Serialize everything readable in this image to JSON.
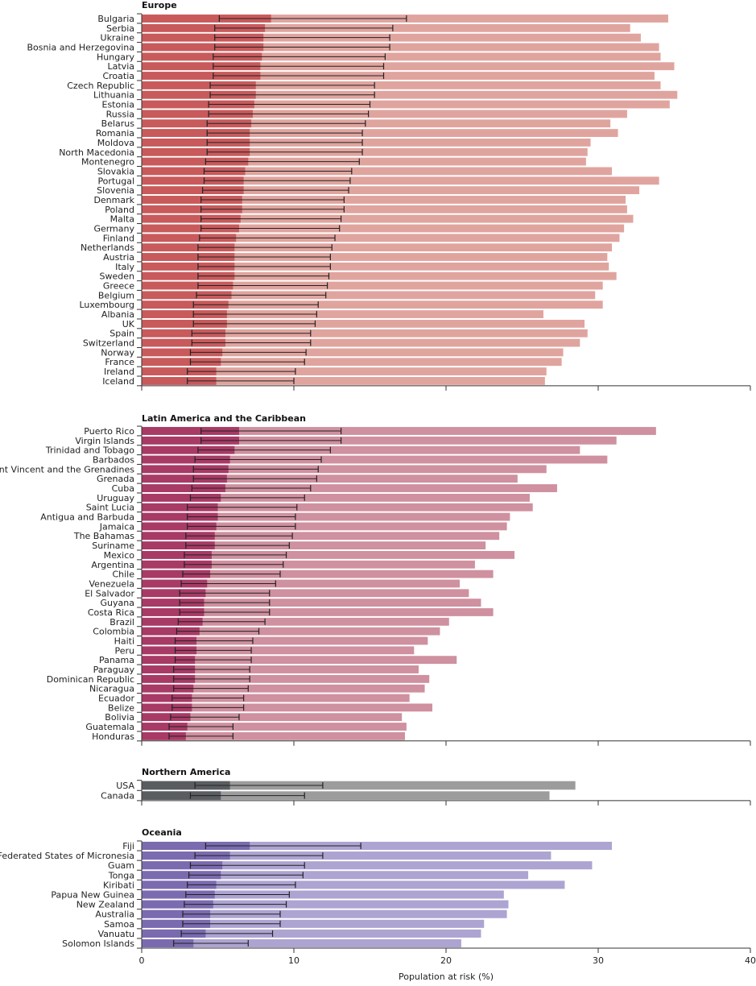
{
  "x_axis": {
    "label": "Population at risk (%)",
    "range": [
      0,
      40
    ],
    "ticks": [
      "0",
      "10",
      "20",
      "30",
      "40"
    ]
  },
  "chart_data": [
    {
      "type": "bar",
      "title": "Europe",
      "colors": {
        "dark": "#c85a5c",
        "light": "#e0a49e"
      },
      "xlim": [
        0,
        40
      ],
      "categories": [
        "Bulgaria",
        "Serbia",
        "Ukraine",
        "Bosnia and Herzegovina",
        "Hungary",
        "Latvia",
        "Croatia",
        "Czech Republic",
        "Lithuania",
        "Estonia",
        "Russia",
        "Belarus",
        "Romania",
        "Moldova",
        "North Macedonia",
        "Montenegro",
        "Slovakia",
        "Portugal",
        "Slovenia",
        "Denmark",
        "Poland",
        "Malta",
        "Germany",
        "Finland",
        "Netherlands",
        "Austria",
        "Italy",
        "Sweden",
        "Greece",
        "Belgium",
        "Luxembourg",
        "Albania",
        "UK",
        "Spain",
        "Switzerland",
        "Norway",
        "France",
        "Ireland",
        "Iceland"
      ],
      "values": [
        8.5,
        8.1,
        8.0,
        8.0,
        7.9,
        7.8,
        7.8,
        7.5,
        7.5,
        7.4,
        7.3,
        7.2,
        7.1,
        7.1,
        7.1,
        7.0,
        6.8,
        6.7,
        6.7,
        6.6,
        6.6,
        6.5,
        6.4,
        6.2,
        6.1,
        6.1,
        6.1,
        6.1,
        6.0,
        5.9,
        5.7,
        5.6,
        5.6,
        5.5,
        5.5,
        5.3,
        5.2,
        4.9,
        4.9
      ],
      "ci_lower": [
        5.1,
        4.8,
        4.8,
        4.8,
        4.7,
        4.7,
        4.7,
        4.5,
        4.5,
        4.4,
        4.4,
        4.3,
        4.3,
        4.3,
        4.3,
        4.2,
        4.1,
        4.1,
        4.0,
        3.9,
        3.9,
        3.9,
        3.9,
        3.8,
        3.7,
        3.7,
        3.7,
        3.7,
        3.7,
        3.6,
        3.4,
        3.4,
        3.4,
        3.3,
        3.3,
        3.2,
        3.2,
        3.0,
        3.0
      ],
      "ci_upper": [
        17.4,
        16.5,
        16.3,
        16.3,
        16.0,
        15.9,
        15.9,
        15.3,
        15.3,
        15.0,
        14.9,
        14.7,
        14.5,
        14.5,
        14.5,
        14.3,
        13.8,
        13.7,
        13.6,
        13.3,
        13.3,
        13.1,
        13.0,
        12.7,
        12.5,
        12.4,
        12.4,
        12.3,
        12.2,
        12.1,
        11.6,
        11.5,
        11.4,
        11.1,
        11.1,
        10.8,
        10.7,
        10.1,
        10.0
      ],
      "values_light": [
        34.6,
        32.1,
        32.8,
        34.0,
        34.1,
        35.0,
        33.7,
        34.1,
        35.2,
        34.7,
        31.9,
        30.8,
        31.3,
        29.5,
        29.3,
        29.2,
        30.9,
        34.0,
        32.7,
        31.8,
        31.9,
        32.3,
        31.7,
        31.4,
        30.9,
        30.6,
        30.7,
        31.2,
        30.3,
        29.8,
        30.3,
        26.4,
        29.1,
        29.3,
        28.8,
        27.7,
        27.6,
        26.6,
        26.5
      ]
    },
    {
      "type": "bar",
      "title": "Latin America and the Caribbean",
      "colors": {
        "dark": "#a83a66",
        "light": "#cf909f"
      },
      "xlim": [
        0,
        40
      ],
      "categories": [
        "Puerto Rico",
        "Virgin Islands",
        "Trinidad and Tobago",
        "Barbados",
        "Saint Vincent and the Grenadines",
        "Grenada",
        "Cuba",
        "Uruguay",
        "Saint Lucia",
        "Antigua and Barbuda",
        "Jamaica",
        "The Bahamas",
        "Suriname",
        "Mexico",
        "Argentina",
        "Chile",
        "Venezuela",
        "El Salvador",
        "Guyana",
        "Costa Rica",
        "Brazil",
        "Colombia",
        "Haiti",
        "Peru",
        "Panama",
        "Paraguay",
        "Dominican Republic",
        "Nicaragua",
        "Ecuador",
        "Belize",
        "Bolivia",
        "Guatemala",
        "Honduras"
      ],
      "values": [
        6.4,
        6.4,
        6.1,
        5.8,
        5.7,
        5.6,
        5.5,
        5.2,
        5.0,
        5.0,
        4.9,
        4.8,
        4.8,
        4.6,
        4.6,
        4.5,
        4.3,
        4.2,
        4.1,
        4.1,
        4.0,
        3.8,
        3.6,
        3.6,
        3.5,
        3.5,
        3.5,
        3.4,
        3.3,
        3.3,
        3.2,
        3.0,
        2.9
      ],
      "ci_lower": [
        3.9,
        3.9,
        3.7,
        3.5,
        3.4,
        3.4,
        3.3,
        3.2,
        3.0,
        3.0,
        3.0,
        2.9,
        2.9,
        2.8,
        2.8,
        2.7,
        2.6,
        2.5,
        2.5,
        2.5,
        2.4,
        2.3,
        2.2,
        2.2,
        2.2,
        2.1,
        2.1,
        2.1,
        2.0,
        2.0,
        1.9,
        1.8,
        1.8
      ],
      "ci_upper": [
        13.1,
        13.1,
        12.4,
        11.8,
        11.6,
        11.5,
        11.1,
        10.7,
        10.2,
        10.1,
        10.1,
        9.9,
        9.7,
        9.5,
        9.3,
        9.1,
        8.8,
        8.4,
        8.4,
        8.4,
        8.1,
        7.7,
        7.3,
        7.2,
        7.2,
        7.1,
        7.1,
        7.0,
        6.7,
        6.7,
        6.4,
        6.0,
        6.0
      ],
      "values_light": [
        33.8,
        31.2,
        28.8,
        30.6,
        26.6,
        24.7,
        27.3,
        25.5,
        25.7,
        24.2,
        24.0,
        23.5,
        22.6,
        24.5,
        21.9,
        23.1,
        20.9,
        21.5,
        22.3,
        23.1,
        20.2,
        19.6,
        18.8,
        17.9,
        20.7,
        18.2,
        18.9,
        18.6,
        17.6,
        19.1,
        17.1,
        17.4,
        17.3
      ]
    },
    {
      "type": "bar",
      "title": "Northern America",
      "colors": {
        "dark": "#5a5d60",
        "light": "#9c9c9c"
      },
      "xlim": [
        0,
        40
      ],
      "categories": [
        "USA",
        "Canada"
      ],
      "values": [
        5.8,
        5.2
      ],
      "ci_lower": [
        3.5,
        3.2
      ],
      "ci_upper": [
        11.9,
        10.7
      ],
      "values_light": [
        28.5,
        26.8
      ]
    },
    {
      "type": "bar",
      "title": "Oceania",
      "colors": {
        "dark": "#7a6bb0",
        "light": "#ada4d2"
      },
      "xlim": [
        0,
        40
      ],
      "categories": [
        "Fiji",
        "Federated States of Micronesia",
        "Guam",
        "Tonga",
        "Kiribati",
        "Papua New Guinea",
        "New Zealand",
        "Australia",
        "Samoa",
        "Vanuatu",
        "Solomon Islands"
      ],
      "values": [
        7.1,
        5.8,
        5.3,
        5.2,
        4.9,
        4.8,
        4.7,
        4.5,
        4.5,
        4.2,
        3.4
      ],
      "ci_lower": [
        4.2,
        3.5,
        3.2,
        3.1,
        3.0,
        2.9,
        2.8,
        2.7,
        2.7,
        2.6,
        2.1
      ],
      "ci_upper": [
        14.4,
        11.9,
        10.7,
        10.6,
        10.1,
        9.7,
        9.5,
        9.1,
        9.1,
        8.6,
        7.0
      ],
      "values_light": [
        30.9,
        26.9,
        29.6,
        25.4,
        27.8,
        23.8,
        24.1,
        24.0,
        22.5,
        22.3,
        21.0
      ]
    }
  ]
}
